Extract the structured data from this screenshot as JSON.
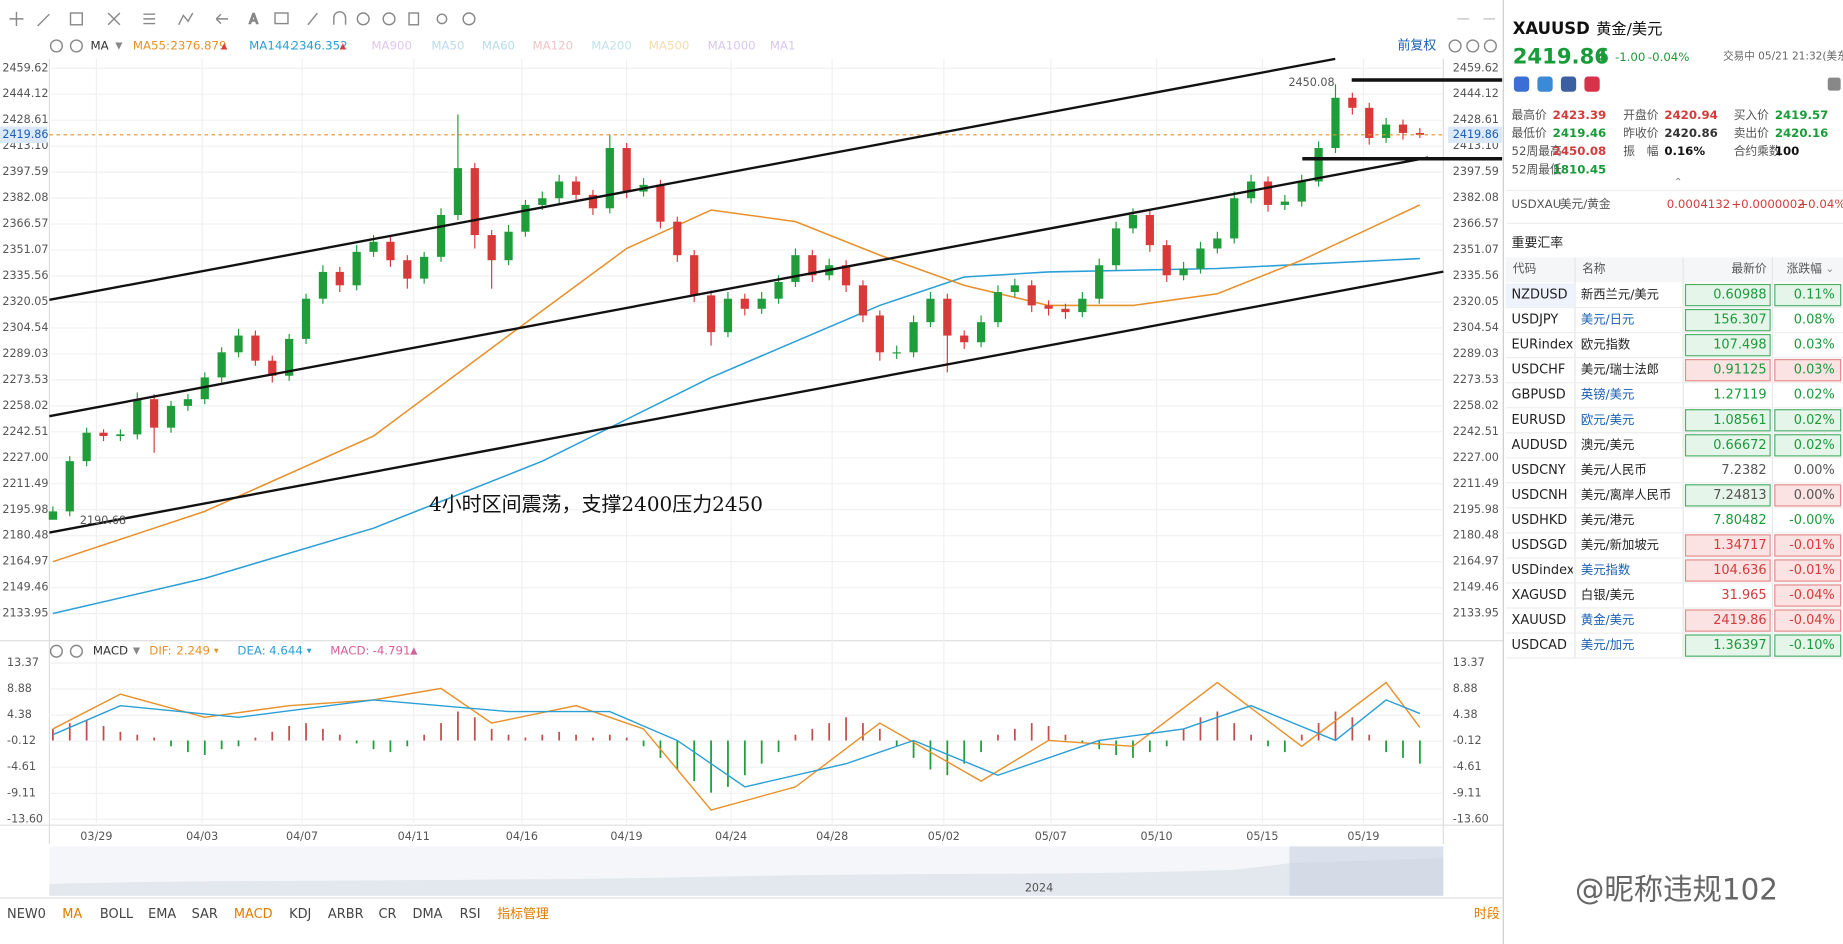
{
  "toolbar": {
    "adjust": "前复权"
  },
  "main_chart": {
    "indicator": "MA",
    "ma_legend": [
      {
        "name": "MA55:",
        "value": "2376.879",
        "color": "#e8902a"
      },
      {
        "name": "MA144:",
        "value": "2346.352",
        "color": "#2a9fd6"
      },
      {
        "name": "MA900",
        "color": "#e2c6ee"
      },
      {
        "name": "MA50",
        "color": "#b9dbee"
      },
      {
        "name": "MA60",
        "color": "#b9dbee"
      },
      {
        "name": "MA120",
        "color": "#f3c3c3"
      },
      {
        "name": "MA200",
        "color": "#bfe3ec"
      },
      {
        "name": "MA500",
        "color": "#f2dcb0"
      },
      {
        "name": "MA1000",
        "color": "#d9c6ee"
      },
      {
        "name": "MA1",
        "color": "#d9c6ee"
      }
    ],
    "ylim": [
      2133.95,
      2459.62
    ],
    "yticks": [
      2459.62,
      2444.12,
      2428.61,
      {
        "value": 2413.1,
        "label": "2413.10"
      },
      2397.59,
      2382.08,
      2366.57,
      2351.07,
      2335.56,
      2320.05,
      2304.54,
      2289.03,
      2273.53,
      2258.02,
      2242.51,
      {
        "value": 2227,
        "label": "2227.00"
      },
      2211.49,
      2195.98,
      2180.48,
      2164.97,
      2149.46,
      2133.95
    ],
    "dates": [
      "03/29",
      "04/03",
      "04/07",
      "04/11",
      "04/16",
      "04/19",
      "04/24",
      "04/28",
      "05/02",
      "05/07",
      "05/10",
      "05/15",
      "05/19"
    ],
    "up_color": "#1f9d3a",
    "down_color": "#d83a3a",
    "candles": [
      [
        2190,
        2198,
        2190.68,
        2195
      ],
      [
        2195,
        2228,
        2192,
        2225
      ],
      [
        2225,
        2245,
        2222,
        2242
      ],
      [
        2242,
        2244,
        2237,
        2240
      ],
      [
        2240,
        2244,
        2237,
        2241
      ],
      [
        2241,
        2266,
        2238,
        2262
      ],
      [
        2262,
        2265,
        2230,
        2245
      ],
      [
        2245,
        2261,
        2242,
        2258
      ],
      [
        2258,
        2265,
        2255,
        2262
      ],
      [
        2262,
        2278,
        2259,
        2275
      ],
      [
        2275,
        2293,
        2272,
        2290
      ],
      [
        2290,
        2304,
        2287,
        2300
      ],
      [
        2300,
        2303,
        2282,
        2285
      ],
      [
        2285,
        2288,
        2272,
        2276
      ],
      [
        2276,
        2301,
        2273,
        2298
      ],
      [
        2298,
        2325,
        2295,
        2322
      ],
      [
        2322,
        2342,
        2319,
        2338
      ],
      [
        2338,
        2341,
        2326,
        2330
      ],
      [
        2330,
        2354,
        2327,
        2350
      ],
      [
        2350,
        2360,
        2347,
        2356
      ],
      [
        2356,
        2359,
        2341,
        2345
      ],
      [
        2345,
        2348,
        2328,
        2334
      ],
      [
        2334,
        2350,
        2331,
        2347
      ],
      [
        2347,
        2376,
        2344,
        2372
      ],
      [
        2372,
        2432,
        2369,
        2400
      ],
      [
        2400,
        2403,
        2352,
        2360
      ],
      [
        2360,
        2363,
        2328,
        2345
      ],
      [
        2345,
        2366,
        2342,
        2362
      ],
      [
        2362,
        2381,
        2359,
        2378
      ],
      [
        2378,
        2386,
        2375,
        2382
      ],
      [
        2382,
        2396,
        2379,
        2392
      ],
      [
        2392,
        2395,
        2381,
        2384
      ],
      [
        2384,
        2387,
        2372,
        2376
      ],
      [
        2376,
        2420,
        2373,
        2412
      ],
      [
        2412,
        2415,
        2382,
        2386
      ],
      [
        2386,
        2394,
        2383,
        2390
      ],
      [
        2390,
        2393,
        2364,
        2368
      ],
      [
        2368,
        2371,
        2344,
        2348
      ],
      [
        2348,
        2351,
        2320,
        2324
      ],
      [
        2324,
        2327,
        2294,
        2302
      ],
      [
        2302,
        2326,
        2299,
        2322
      ],
      [
        2322,
        2325,
        2312,
        2316
      ],
      [
        2316,
        2326,
        2313,
        2322
      ],
      [
        2322,
        2336,
        2319,
        2332
      ],
      [
        2332,
        2352,
        2329,
        2348
      ],
      [
        2348,
        2351,
        2332,
        2336
      ],
      [
        2336,
        2346,
        2333,
        2342
      ],
      [
        2342,
        2345,
        2326,
        2330
      ],
      [
        2330,
        2333,
        2308,
        2312
      ],
      [
        2312,
        2315,
        2285,
        2290
      ],
      [
        2290,
        2294,
        2286,
        2290
      ],
      [
        2290,
        2312,
        2287,
        2308
      ],
      [
        2308,
        2326,
        2305,
        2322
      ],
      [
        2322,
        2325,
        2278,
        2300
      ],
      [
        2300,
        2303,
        2292,
        2296
      ],
      [
        2296,
        2312,
        2293,
        2308
      ],
      [
        2308,
        2330,
        2305,
        2326
      ],
      [
        2326,
        2334,
        2323,
        2330
      ],
      [
        2330,
        2333,
        2314,
        2318
      ],
      [
        2318,
        2321,
        2312,
        2316
      ],
      [
        2316,
        2319,
        2310,
        2314
      ],
      [
        2314,
        2326,
        2311,
        2322
      ],
      [
        2322,
        2346,
        2319,
        2342
      ],
      [
        2342,
        2368,
        2339,
        2364
      ],
      [
        2364,
        2376,
        2361,
        2372
      ],
      [
        2372,
        2375,
        2350,
        2354
      ],
      [
        2354,
        2357,
        2332,
        2336
      ],
      [
        2336,
        2344,
        2333,
        2340
      ],
      [
        2340,
        2356,
        2337,
        2352
      ],
      [
        2352,
        2362,
        2349,
        2358
      ],
      [
        2358,
        2386,
        2355,
        2382
      ],
      [
        2382,
        2396,
        2379,
        2392
      ],
      [
        2392,
        2395,
        2374,
        2378
      ],
      [
        2378,
        2384,
        2375,
        2380
      ],
      [
        2380,
        2396,
        2377,
        2392
      ],
      [
        2392,
        2416,
        2389,
        2412
      ],
      [
        2412,
        2450.08,
        2409,
        2442
      ],
      [
        2442,
        2445,
        2432,
        2436
      ],
      [
        2436,
        2439,
        2414,
        2418
      ],
      [
        2418,
        2430,
        2415,
        2426
      ],
      [
        2426,
        2429,
        2417,
        2421
      ],
      [
        2421,
        2424,
        2418,
        2419.86
      ]
    ],
    "ma55": {
      "color": "#e8902a",
      "x": [
        0,
        9,
        19,
        27,
        34,
        39,
        44,
        49,
        54,
        59,
        64,
        69,
        74,
        81
      ],
      "values": [
        2165,
        2195,
        2240,
        2300,
        2352,
        2375,
        2368,
        2348,
        2330,
        2318,
        2318,
        2325,
        2345,
        2378
      ]
    },
    "ma144": {
      "color": "#2a9fd6",
      "x": [
        0,
        9,
        19,
        29,
        39,
        49,
        54,
        59,
        69,
        81
      ],
      "values": [
        2134,
        2155,
        2185,
        2225,
        2275,
        2318,
        2335,
        2338,
        2340,
        2346
      ]
    },
    "last_price": 2419.86,
    "high_label": 2450.08,
    "low_label": 2190.68,
    "annotation": "4小时区间震荡，支撑2400压力2450"
  },
  "macd": {
    "label": "MACD",
    "dif_label": "DIF:",
    "dif": 2.249,
    "dea_label": "DEA:",
    "dea": 4.644,
    "macd_label": "MACD:",
    "macd": -4.791,
    "ylim": [
      -13.6,
      13.37
    ],
    "yticks": [
      13.37,
      8.88,
      4.38,
      -0.12,
      -4.61,
      -9.11,
      {
        "value": -13.6,
        "label": "-13.60"
      }
    ],
    "hist": [
      2,
      3,
      3.5,
      2.5,
      1.5,
      1,
      0.5,
      -1,
      -2,
      -2.5,
      -1.5,
      -1,
      0.5,
      1.5,
      2.5,
      3,
      2,
      1,
      -0.5,
      -1.5,
      -2,
      -1,
      1,
      3,
      5,
      4,
      2,
      1,
      0.5,
      1,
      1.5,
      1,
      0.5,
      1,
      0.5,
      -1,
      -3,
      -5,
      -7,
      -9,
      -8,
      -6,
      -4,
      -2,
      1,
      2,
      3,
      4,
      3,
      2,
      -1,
      -3,
      -5,
      -6,
      -4,
      -2,
      1,
      2,
      3,
      2.5,
      1,
      -0.5,
      -1.5,
      -2.5,
      -3,
      -2,
      -1,
      2,
      4,
      5,
      3,
      1,
      -1,
      -2,
      1,
      3,
      5,
      4,
      1,
      -2,
      -3,
      -4
    ],
    "dif_line": {
      "color": "#e8902a",
      "x": [
        0,
        4,
        9,
        14,
        19,
        23,
        26,
        31,
        35,
        39,
        44,
        49,
        52,
        55,
        59,
        64,
        69,
        74,
        79,
        81
      ],
      "values": [
        2,
        8,
        4,
        6,
        7,
        9,
        3,
        6,
        2,
        -12,
        -8,
        3,
        -2,
        -7,
        0,
        -1,
        10,
        -1,
        10,
        2.249
      ]
    },
    "dea_line": {
      "color": "#2a9fd6",
      "x": [
        0,
        4,
        11,
        19,
        27,
        33,
        37,
        41,
        47,
        51,
        56,
        62,
        67,
        71,
        76,
        79,
        81
      ],
      "values": [
        1,
        6,
        4,
        7,
        5,
        5,
        0,
        -8,
        -4,
        0,
        -6,
        0,
        2,
        6,
        0,
        7,
        4.644
      ]
    }
  },
  "navigator": {
    "year": "2024"
  },
  "bottom_tabs": {
    "items": [
      "NEW0",
      "MA",
      "BOLL",
      "EMA",
      "SAR",
      "MACD",
      "KDJ",
      "ARBR",
      "CR",
      "DMA",
      "RSI",
      "指标管理"
    ],
    "active": [
      "MA",
      "MACD",
      "指标管理"
    ],
    "right": "时段"
  },
  "watermark": "@昵称违规102",
  "quote": {
    "code": "XAUUSD",
    "name": "黄金/美元",
    "price": "2419.86",
    "change": "-1.00",
    "change_pct": "-0.04%",
    "status": "交易中 05/21 21:32(美东)",
    "stats": [
      [
        {
          "label": "最高价",
          "value": "2423.39",
          "tone": "up"
        },
        {
          "label": "开盘价",
          "value": "2420.94",
          "tone": "up"
        },
        {
          "label": "买入价",
          "value": "2419.57",
          "tone": "down"
        }
      ],
      [
        {
          "label": "最低价",
          "value": "2419.46",
          "tone": "down"
        },
        {
          "label": "昨收价",
          "value": "2420.86",
          "tone": "flat"
        },
        {
          "label": "卖出价",
          "value": "2420.16",
          "tone": "down"
        }
      ],
      [
        {
          "label": "52周最高",
          "value": "2450.08",
          "tone": "up"
        },
        {
          "label": "振　幅",
          "value": "0.16%",
          "tone": "dark"
        },
        {
          "label": "合约乘数",
          "value": "100",
          "tone": "dark"
        }
      ],
      [
        {
          "label": "52周最低",
          "value": "1810.45",
          "tone": "down"
        }
      ]
    ],
    "inverse": {
      "code": "USDXAU",
      "name": "美元/黄金",
      "price": "0.0004132",
      "change": "+0.0000002",
      "change_pct": "+0.04%"
    }
  },
  "rates": {
    "title": "重要汇率",
    "headers": [
      "代码",
      "名称",
      "最新价",
      "涨跌幅"
    ],
    "rows": [
      {
        "code": "NZDUSD",
        "name": "新西兰元/美元",
        "price": "0.60988",
        "change": "0.11%",
        "tone": "down",
        "link": false,
        "price_flash": "up",
        "change_flash": "up"
      },
      {
        "code": "USDJPY",
        "name": "美元/日元",
        "price": "156.307",
        "change": "0.08%",
        "tone": "down",
        "link": true,
        "price_flash": "up",
        "change_flash": null
      },
      {
        "code": "EURindex",
        "name": "欧元指数",
        "price": "107.498",
        "change": "0.03%",
        "tone": "down",
        "link": false,
        "price_flash": "up",
        "change_flash": null
      },
      {
        "code": "USDCHF",
        "name": "美元/瑞士法郎",
        "price": "0.91125",
        "change": "0.03%",
        "tone": "down",
        "link": false,
        "price_flash": "down",
        "change_flash": "down"
      },
      {
        "code": "GBPUSD",
        "name": "英镑/美元",
        "price": "1.27119",
        "change": "0.02%",
        "tone": "down",
        "link": true,
        "price_flash": null,
        "change_flash": null
      },
      {
        "code": "EURUSD",
        "name": "欧元/美元",
        "price": "1.08561",
        "change": "0.02%",
        "tone": "down",
        "link": true,
        "price_flash": "up",
        "change_flash": "up"
      },
      {
        "code": "AUDUSD",
        "name": "澳元/美元",
        "price": "0.66672",
        "change": "0.02%",
        "tone": "down",
        "link": false,
        "price_flash": "up",
        "change_flash": "up"
      },
      {
        "code": "USDCNY",
        "name": "美元/人民币",
        "price": "7.2382",
        "change": "0.00%",
        "tone": "up",
        "link": false,
        "price_flash": null,
        "change_flash": null
      },
      {
        "code": "USDCNH",
        "name": "美元/离岸人民币",
        "price": "7.24813",
        "change": "0.00%",
        "tone": "up",
        "link": false,
        "price_flash": "up",
        "change_flash": "down"
      },
      {
        "code": "USDHKD",
        "name": "美元/港元",
        "price": "7.80482",
        "change": "-0.00%",
        "tone": "down",
        "link": false,
        "price_flash": null,
        "change_flash": null
      },
      {
        "code": "USDSGD",
        "name": "美元/新加坡元",
        "price": "1.34717",
        "change": "-0.01%",
        "tone": "up",
        "link": false,
        "price_flash": "down",
        "change_flash": "down"
      },
      {
        "code": "USDindex",
        "name": "美元指数",
        "price": "104.636",
        "change": "-0.01%",
        "tone": "up",
        "link": true,
        "price_flash": "down",
        "change_flash": "down"
      },
      {
        "code": "XAGUSD",
        "name": "白银/美元",
        "price": "31.965",
        "change": "-0.04%",
        "tone": "up",
        "link": false,
        "price_flash": null,
        "change_flash": "down"
      },
      {
        "code": "XAUUSD",
        "name": "黄金/美元",
        "price": "2419.86",
        "change": "-0.04%",
        "tone": "up",
        "link": true,
        "price_flash": "down",
        "change_flash": "down"
      },
      {
        "code": "USDCAD",
        "name": "美元/加元",
        "price": "1.36397",
        "change": "-0.10%",
        "tone": "down",
        "link": true,
        "price_flash": "up",
        "change_flash": "up"
      }
    ]
  }
}
